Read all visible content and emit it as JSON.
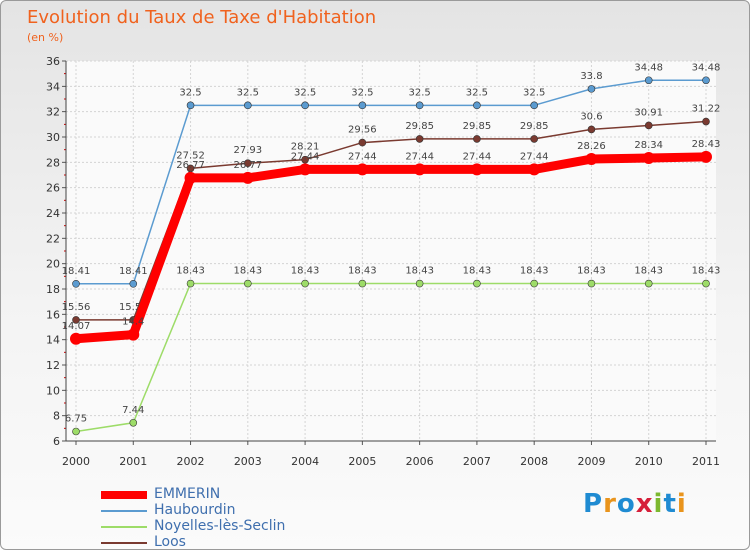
{
  "title": "Evolution du Taux de Taxe d'Habitation",
  "subtitle": "(en %)",
  "logo": {
    "text": "Proxiti",
    "colors": [
      "#1f8bd2",
      "#e9941c",
      "#1f8bd2",
      "#d61f3a",
      "#7cb82f",
      "#1f8bd2",
      "#e9941c"
    ]
  },
  "chart_data": {
    "type": "line",
    "x": [
      "2000",
      "2001",
      "2002",
      "2003",
      "2004",
      "2005",
      "2006",
      "2007",
      "2008",
      "2009",
      "2010",
      "2011"
    ],
    "ylim": [
      6,
      36
    ],
    "yticks": [
      6,
      8,
      10,
      12,
      14,
      16,
      18,
      20,
      22,
      24,
      26,
      28,
      30,
      32,
      34,
      36
    ],
    "grid": true,
    "legend": "bottom-left",
    "series": [
      {
        "name": "EMMERIN",
        "color": "#ff0000",
        "values": [
          14.07,
          14.4,
          26.77,
          26.77,
          27.44,
          27.44,
          27.44,
          27.44,
          27.44,
          28.26,
          28.34,
          28.43
        ],
        "labels": [
          "14.07",
          "14.4",
          "26.77",
          "26.77",
          "27.44",
          "27.44",
          "27.44",
          "27.44",
          "27.44",
          "28.26",
          "28.34",
          "28.43"
        ]
      },
      {
        "name": "Haubourdin",
        "color": "#5b9bd0",
        "values": [
          18.41,
          18.41,
          32.5,
          32.5,
          32.5,
          32.5,
          32.5,
          32.5,
          32.5,
          33.8,
          34.48,
          34.48
        ],
        "labels": [
          "18.41",
          "18.41",
          "32.5",
          "32.5",
          "32.5",
          "32.5",
          "32.5",
          "32.5",
          "32.5",
          "33.8",
          "34.48",
          "34.48"
        ]
      },
      {
        "name": "Noyelles-lès-Seclin",
        "color": "#9ddc68",
        "values": [
          6.75,
          7.44,
          18.43,
          18.43,
          18.43,
          18.43,
          18.43,
          18.43,
          18.43,
          18.43,
          18.43,
          18.43
        ],
        "labels": [
          "6.75",
          "7.44",
          "18.43",
          "18.43",
          "18.43",
          "18.43",
          "18.43",
          "18.43",
          "18.43",
          "18.43",
          "18.43",
          "18.43"
        ]
      },
      {
        "name": "Loos",
        "color": "#7a3a30",
        "values": [
          15.56,
          15.56,
          27.52,
          27.93,
          28.21,
          29.56,
          29.85,
          29.85,
          29.85,
          30.6,
          30.91,
          31.22
        ],
        "labels": [
          "15.56",
          "15.56",
          "27.52",
          "27.93",
          "28.21",
          "29.56",
          "29.85",
          "29.85",
          "29.85",
          "30.6",
          "30.91",
          "31.22"
        ]
      }
    ]
  }
}
